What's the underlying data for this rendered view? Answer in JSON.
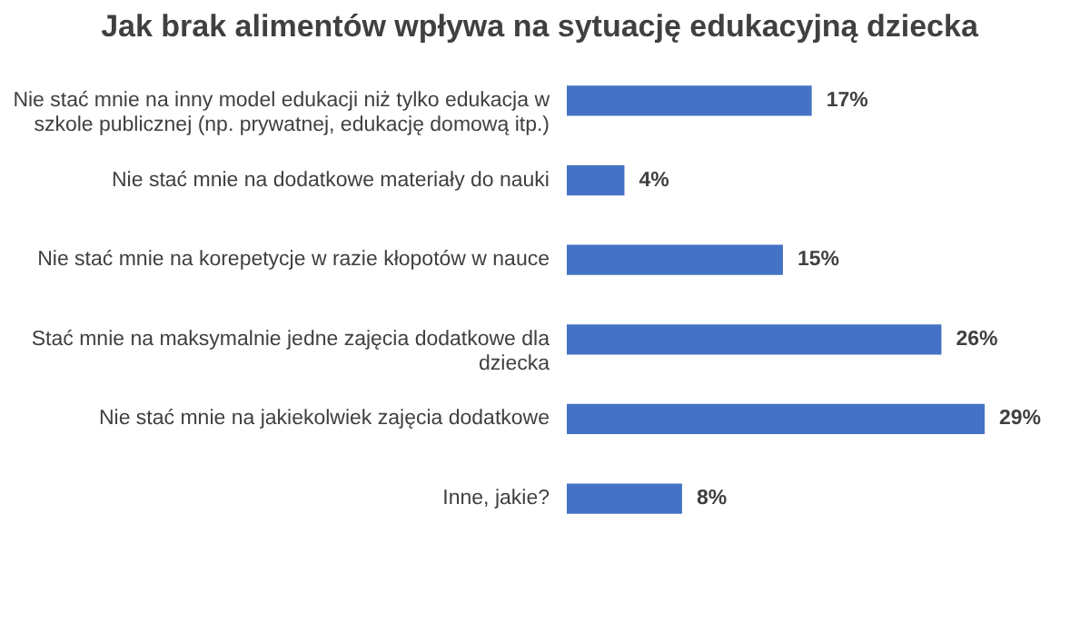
{
  "chart_data": {
    "type": "bar",
    "orientation": "horizontal",
    "title": "Jak brak alimentów wpływa na sytuację edukacyjną dziecka",
    "categories": [
      "Nie stać mnie na inny model edukacji niż tylko edukacja w szkole publicznej (np. prywatnej, edukację domową itp.)",
      "Nie stać mnie na dodatkowe materiały do nauki",
      "Nie stać mnie na korepetycje w razie kłopotów w nauce",
      "Stać mnie na maksymalnie jedne zajęcia dodatkowe dla dziecka",
      "Nie stać mnie na jakiekolwiek zajęcia dodatkowe",
      "Inne, jakie?"
    ],
    "values": [
      17,
      4,
      15,
      26,
      29,
      8
    ],
    "value_labels": [
      "17%",
      "4%",
      "15%",
      "26%",
      "29%",
      "8%"
    ],
    "color": "#4472c4",
    "tick_labels": "y"
  }
}
